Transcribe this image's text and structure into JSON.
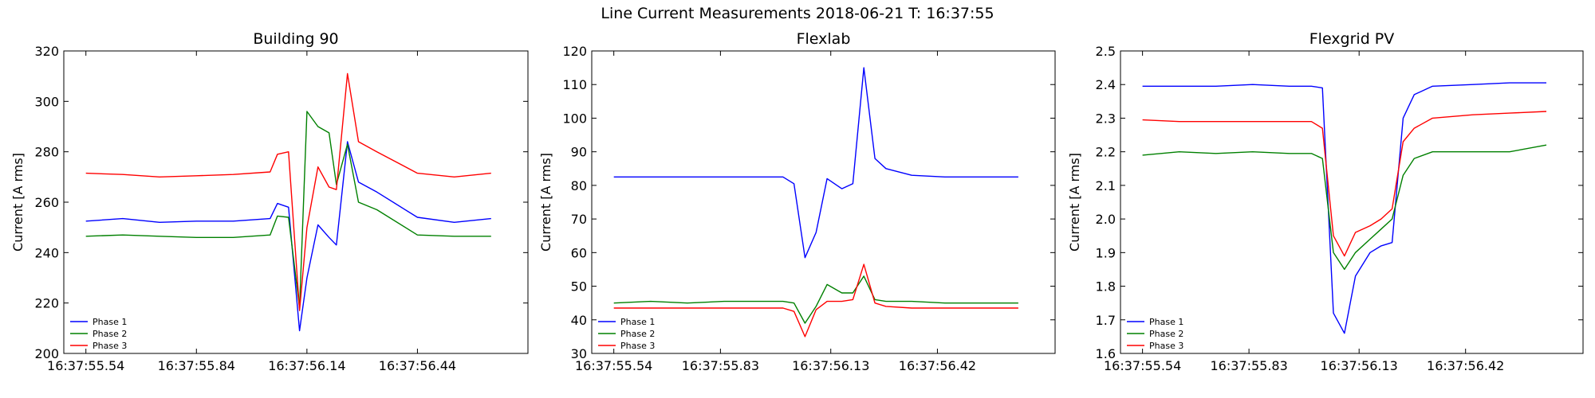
{
  "figure_title": "Line Current Measurements 2018-06-21 T: 16:37:55",
  "colors": {
    "Phase 1": "#0000ff",
    "Phase 2": "#008000",
    "Phase 3": "#ff0000"
  },
  "chart_data": [
    {
      "type": "line",
      "title": "Building 90",
      "xlabel": "",
      "ylabel": "Current [A rms]",
      "ylim": [
        200,
        320
      ],
      "yticks": [
        "200",
        "220",
        "240",
        "260",
        "280",
        "300",
        "320"
      ],
      "xlim_seconds": [
        55.48,
        56.74
      ],
      "xticks": [
        "16:37:55.54",
        "16:37:55.84",
        "16:37:56.14",
        "16:37:56.44"
      ],
      "legend": "lower-left",
      "grid": false,
      "x": [
        "16:37:55.54",
        "16:37:55.64",
        "16:37:55.74",
        "16:37:55.84",
        "16:37:55.94",
        "16:37:56.04",
        "16:37:56.06",
        "16:37:56.09",
        "16:37:56.12",
        "16:37:56.14",
        "16:37:56.17",
        "16:37:56.20",
        "16:37:56.22",
        "16:37:56.25",
        "16:37:56.28",
        "16:37:56.33",
        "16:37:56.44",
        "16:37:56.54",
        "16:37:56.64"
      ],
      "series": [
        {
          "name": "Phase 1",
          "values": [
            252.5,
            253.5,
            252,
            252.5,
            252.5,
            253.5,
            259.5,
            258,
            209,
            230,
            251,
            246,
            243,
            284,
            268,
            264,
            254,
            252,
            253.5
          ]
        },
        {
          "name": "Phase 2",
          "values": [
            246.5,
            247,
            246.5,
            246,
            246,
            247,
            254.5,
            254,
            218,
            296,
            290,
            287.5,
            267,
            283,
            260,
            257,
            247,
            246.5,
            246.5
          ]
        },
        {
          "name": "Phase 3",
          "values": [
            271.5,
            271,
            270,
            270.5,
            271,
            272,
            279,
            280,
            217,
            250,
            274,
            266,
            265,
            311,
            284,
            280,
            271.5,
            270,
            271.5
          ]
        }
      ]
    },
    {
      "type": "line",
      "title": "Flexlab",
      "xlabel": "",
      "ylabel": "Current [A rms]",
      "ylim": [
        30,
        120
      ],
      "yticks": [
        "30",
        "40",
        "50",
        "60",
        "70",
        "80",
        "90",
        "100",
        "110",
        "120"
      ],
      "xlim_seconds": [
        55.48,
        56.74
      ],
      "xticks": [
        "16:37:55.54",
        "16:37:55.83",
        "16:37:56.13",
        "16:37:56.42"
      ],
      "legend": "lower-left",
      "grid": false,
      "x": [
        "16:37:55.54",
        "16:37:55.64",
        "16:37:55.74",
        "16:37:55.84",
        "16:37:55.94",
        "16:37:56.00",
        "16:37:56.03",
        "16:37:56.06",
        "16:37:56.09",
        "16:37:56.12",
        "16:37:56.16",
        "16:37:56.19",
        "16:37:56.22",
        "16:37:56.25",
        "16:37:56.28",
        "16:37:56.35",
        "16:37:56.44",
        "16:37:56.54",
        "16:37:56.64"
      ],
      "series": [
        {
          "name": "Phase 1",
          "values": [
            82.5,
            82.5,
            82.5,
            82.5,
            82.5,
            82.5,
            80.5,
            58.5,
            66,
            82,
            79,
            80.5,
            115,
            88,
            85,
            83,
            82.5,
            82.5,
            82.5
          ]
        },
        {
          "name": "Phase 2",
          "values": [
            45,
            45.5,
            45,
            45.5,
            45.5,
            45.5,
            45,
            39,
            44,
            50.5,
            48,
            48,
            53,
            46,
            45.5,
            45.5,
            45,
            45,
            45
          ]
        },
        {
          "name": "Phase 3",
          "values": [
            43.5,
            43.5,
            43.5,
            43.5,
            43.5,
            43.5,
            42.5,
            35,
            43,
            45.5,
            45.5,
            46,
            56.5,
            45,
            44,
            43.5,
            43.5,
            43.5,
            43.5
          ]
        }
      ]
    },
    {
      "type": "line",
      "title": "Flexgrid PV",
      "xlabel": "",
      "ylabel": "Current [A rms]",
      "ylim": [
        1.6,
        2.5
      ],
      "yticks": [
        "1.6",
        "1.7",
        "1.8",
        "1.9",
        "2.0",
        "2.1",
        "2.2",
        "2.3",
        "2.4",
        "2.5"
      ],
      "xlim_seconds": [
        55.48,
        56.74
      ],
      "xticks": [
        "16:37:55.54",
        "16:37:55.83",
        "16:37:56.13",
        "16:37:56.42"
      ],
      "legend": "lower-left",
      "grid": false,
      "x": [
        "16:37:55.54",
        "16:37:55.64",
        "16:37:55.74",
        "16:37:55.84",
        "16:37:55.94",
        "16:37:56.00",
        "16:37:56.03",
        "16:37:56.06",
        "16:37:56.09",
        "16:37:56.12",
        "16:37:56.16",
        "16:37:56.19",
        "16:37:56.22",
        "16:37:56.25",
        "16:37:56.28",
        "16:37:56.33",
        "16:37:56.44",
        "16:37:56.54",
        "16:37:56.64"
      ],
      "series": [
        {
          "name": "Phase 1",
          "values": [
            2.395,
            2.395,
            2.395,
            2.4,
            2.395,
            2.395,
            2.39,
            1.72,
            1.66,
            1.83,
            1.9,
            1.92,
            1.93,
            2.3,
            2.37,
            2.395,
            2.4,
            2.405,
            2.405
          ]
        },
        {
          "name": "Phase 2",
          "values": [
            2.19,
            2.2,
            2.195,
            2.2,
            2.195,
            2.195,
            2.18,
            1.9,
            1.85,
            1.9,
            1.94,
            1.97,
            2.0,
            2.13,
            2.18,
            2.2,
            2.2,
            2.2,
            2.22
          ]
        },
        {
          "name": "Phase 3",
          "values": [
            2.295,
            2.29,
            2.29,
            2.29,
            2.29,
            2.29,
            2.27,
            1.95,
            1.89,
            1.96,
            1.98,
            2.0,
            2.03,
            2.23,
            2.27,
            2.3,
            2.31,
            2.315,
            2.32
          ]
        }
      ]
    }
  ]
}
